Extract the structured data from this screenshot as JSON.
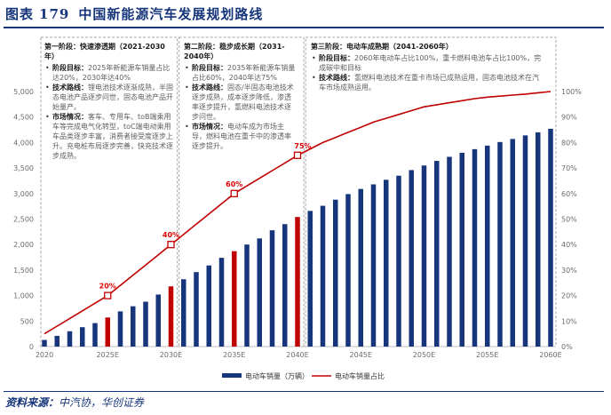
{
  "title": {
    "label": "图表",
    "number": "179",
    "text": "中国新能源汽车发展规划路线"
  },
  "source": {
    "label": "资料来源：",
    "text": "中汽协，华创证券"
  },
  "stages": [
    {
      "title": "第一阶段：快速渗透期（2021-2030年）",
      "items": [
        {
          "key": "阶段目标：",
          "text": "2025年新能源车销量占比达20%，2030年达40%"
        },
        {
          "key": "技术路线：",
          "text": "锂电池技术逐渐成熟，半固态电池产品逐步问世，固态电池产品开始量产。"
        },
        {
          "key": "市场情况：",
          "text": "客车、专用车、toB端乘用车等完成电气化转型，toC端电动乘用车品类逐步丰富，消费者接受度逐步上升。充电桩布局逐步完善，快充技术逐步成熟。"
        }
      ]
    },
    {
      "title": "第二阶段：稳步成长期（2031-2040年）",
      "items": [
        {
          "key": "阶段目标：",
          "text": "2035年新能源车销量占比60%，2040年达75%"
        },
        {
          "key": "技术路线：",
          "text": "固态/半固态电池技术逐步成熟，成本逐步降低，渗透率逐步提升，氢燃料电池技术逐步问世。"
        },
        {
          "key": "市场情况：",
          "text": "电动车成为市场主导，燃料电池在重卡中的渗透率逐步提升。"
        }
      ]
    },
    {
      "title": "第三阶段：电动车成熟期（2041-2060年）",
      "items": [
        {
          "key": "阶段目标：",
          "text": "2060年电动车占比100%，重卡燃料电池车占比100%，完成碳中和目标"
        },
        {
          "key": "技术路线：",
          "text": "氢燃料电池技术在重卡市场已成熟运用，固态电池技术在汽车市场成熟运用。"
        }
      ]
    }
  ],
  "colors": {
    "bar": "#16357a",
    "highlight_bar": "#c00000",
    "line": "#c00000",
    "title": "#16357a"
  },
  "chart_data": {
    "type": "bar",
    "title": "中国新能源汽车发展规划路线",
    "x": [
      2020,
      2021,
      2022,
      2023,
      2024,
      2025,
      2026,
      2027,
      2028,
      2029,
      2030,
      2031,
      2032,
      2033,
      2034,
      2035,
      2036,
      2037,
      2038,
      2039,
      2040,
      2041,
      2042,
      2043,
      2044,
      2045,
      2046,
      2047,
      2048,
      2049,
      2050,
      2051,
      2052,
      2053,
      2054,
      2055,
      2056,
      2057,
      2058,
      2059,
      2060
    ],
    "x_tick_labels": [
      "2020",
      "2025E",
      "2030E",
      "2035E",
      "2040E",
      "2045E",
      "2050E",
      "2055E",
      "2060E"
    ],
    "x_tick_years": [
      2020,
      2025,
      2030,
      2035,
      2040,
      2045,
      2050,
      2055,
      2060
    ],
    "highlight_years": [
      2025,
      2030,
      2035,
      2040
    ],
    "series": [
      {
        "name": "电动车销量（万辆）",
        "axis": "left",
        "values": [
          130,
          210,
          300,
          380,
          460,
          570,
          690,
          790,
          880,
          1020,
          1180,
          1320,
          1460,
          1590,
          1740,
          1870,
          2000,
          2120,
          2280,
          2400,
          2540,
          2660,
          2760,
          2880,
          2990,
          3090,
          3180,
          3270,
          3350,
          3460,
          3550,
          3640,
          3720,
          3800,
          3870,
          3940,
          4010,
          4070,
          4140,
          4200,
          4270
        ]
      },
      {
        "name": "电动车销量占比",
        "axis": "right",
        "type": "line",
        "values": [
          5,
          8,
          11,
          14,
          17,
          20,
          24,
          28,
          32,
          36,
          40,
          44,
          48,
          52,
          56,
          60,
          63,
          66,
          69,
          72,
          75,
          77.5,
          80,
          82,
          84,
          86,
          88,
          89.5,
          91,
          92.5,
          94,
          94.8,
          95.6,
          96.4,
          97.2,
          97.8,
          98.2,
          98.6,
          99,
          99.5,
          100
        ]
      }
    ],
    "annotations": [
      {
        "x": 2025,
        "label": "20%"
      },
      {
        "x": 2030,
        "label": "40%"
      },
      {
        "x": 2035,
        "label": "60%"
      },
      {
        "x": 2040,
        "label": "75%"
      }
    ],
    "y_left": {
      "ylim": [
        0,
        5000
      ],
      "ticks": [
        "0",
        "500",
        "1,000",
        "1,500",
        "2,000",
        "2,500",
        "3,000",
        "3,500",
        "4,000",
        "4,500",
        "5,000"
      ]
    },
    "y_right": {
      "ylim": [
        0,
        100
      ],
      "ticks": [
        "0%",
        "10%",
        "20%",
        "30%",
        "40%",
        "50%",
        "60%",
        "70%",
        "80%",
        "90%",
        "100%"
      ]
    },
    "legend_position": "bottom-center",
    "stage_dividers": [
      2030.5,
      2040.5
    ]
  }
}
